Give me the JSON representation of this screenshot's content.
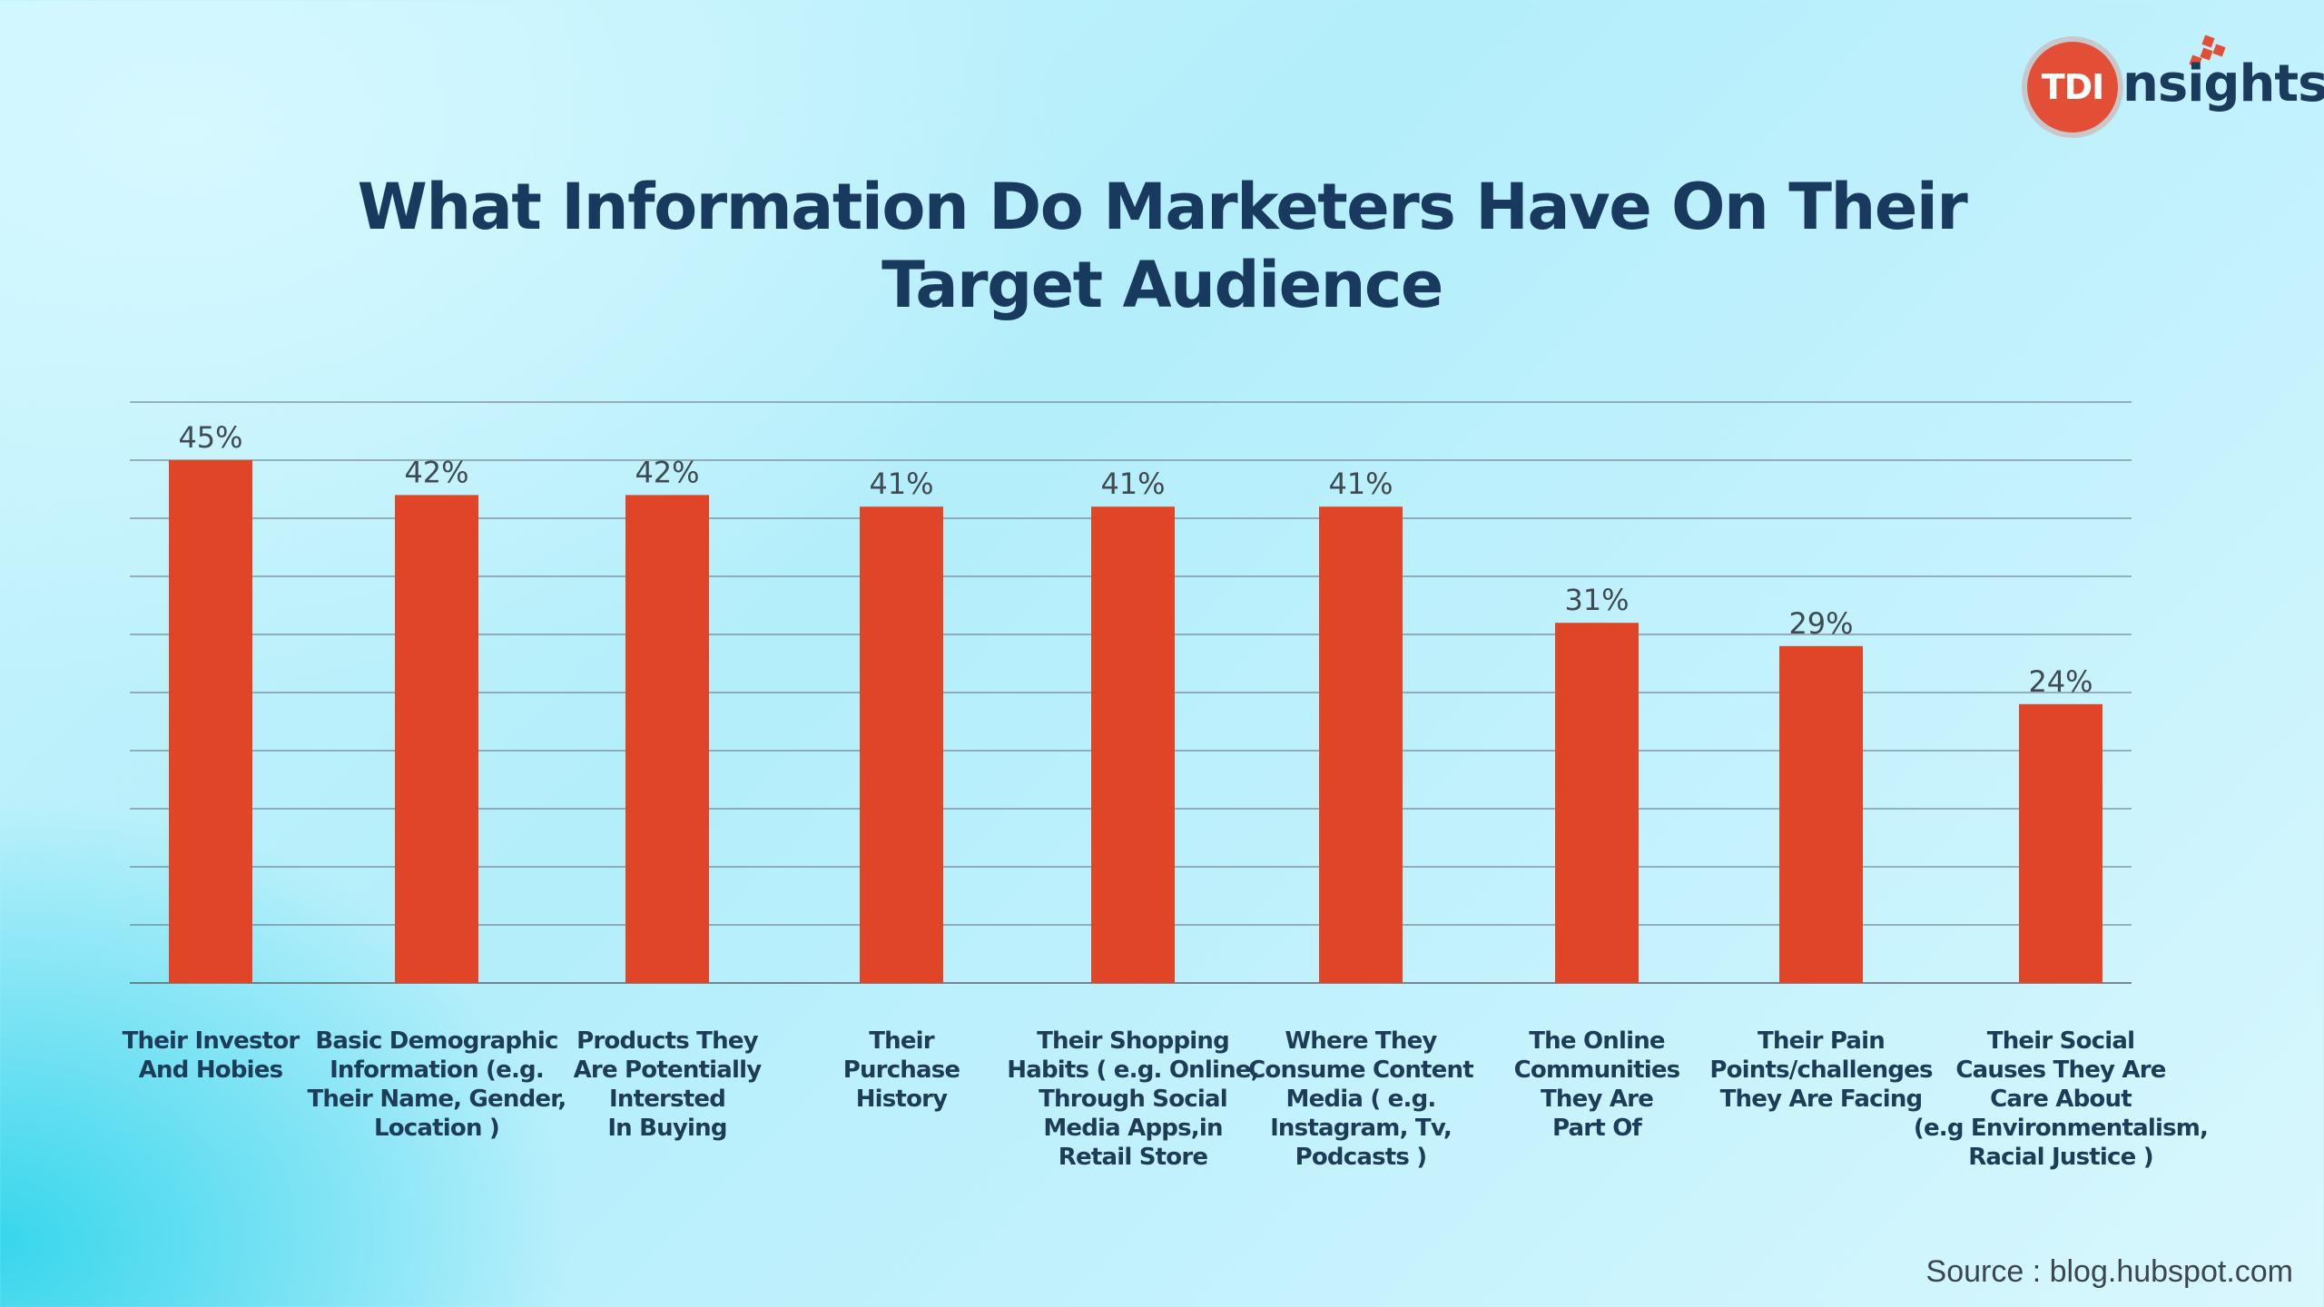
{
  "brand": {
    "logo_badge": "TDI",
    "logo_text": "nsights",
    "accent_color": "#e34f36"
  },
  "chart_data": {
    "type": "bar",
    "title_lines": [
      "What Information Do Marketers Have On Their",
      "Target Audience"
    ],
    "categories": [
      [
        "Their Investor",
        "And Hobies"
      ],
      [
        "Basic Demographic",
        "Information (e.g.",
        "Their Name, Gender,",
        "Location )"
      ],
      [
        "Products They",
        "Are Potentially",
        "Intersted",
        "In Buying"
      ],
      [
        "Their",
        "Purchase",
        "History"
      ],
      [
        "Their Shopping",
        "Habits ( e.g. Online,",
        "Through Social",
        "Media Apps,in",
        "Retail Store"
      ],
      [
        "Where They",
        "Consume Content",
        "Media ( e.g.",
        "Instagram, Tv,",
        "Podcasts )"
      ],
      [
        "The Online",
        "Communities",
        "They Are",
        "Part Of"
      ],
      [
        "Their Pain",
        "Points/challenges",
        "They Are Facing"
      ],
      [
        "Their Social",
        "Causes They Are",
        "Care About",
        "(e.g Environmentalism,",
        "Racial Justice )"
      ]
    ],
    "values": [
      45,
      42,
      42,
      41,
      41,
      41,
      31,
      29,
      24
    ],
    "value_labels": [
      "45%",
      "42%",
      "42%",
      "41%",
      "41%",
      "41%",
      "31%",
      "29%",
      "24%"
    ],
    "ylim": [
      0,
      50
    ],
    "grid": true,
    "bar_color": "#e04527",
    "xlabel": "",
    "ylabel": ""
  },
  "source": "Source : blog.hubspot.com"
}
